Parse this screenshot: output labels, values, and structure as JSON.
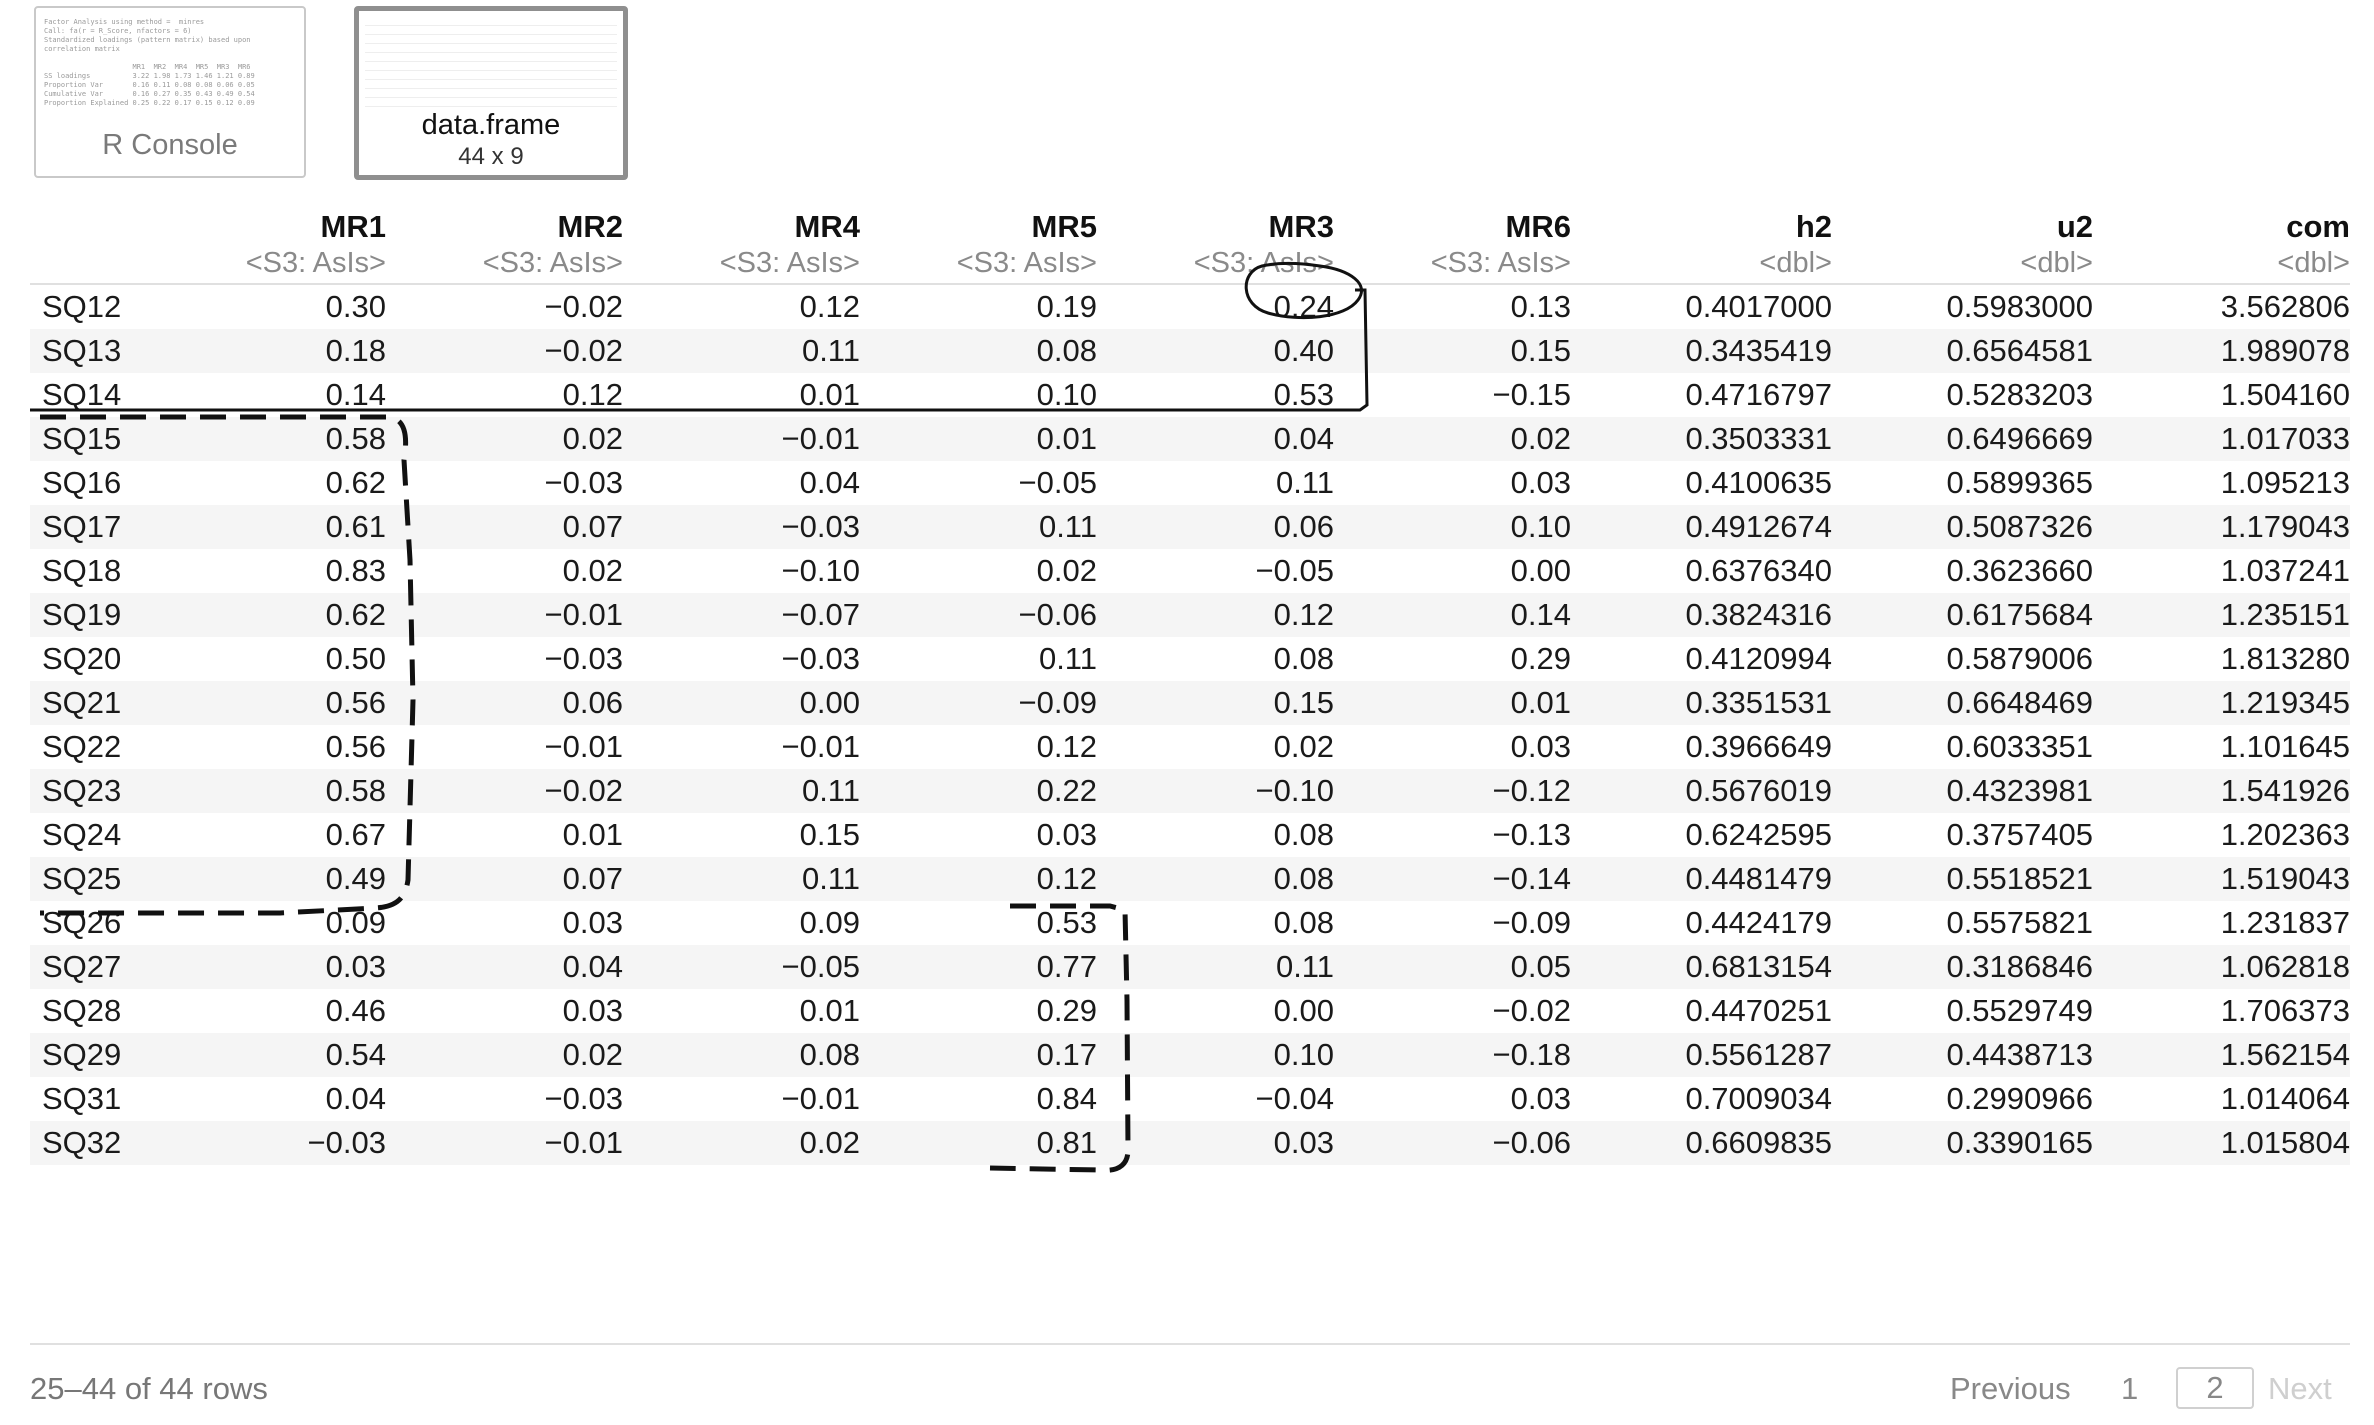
{
  "tabs": [
    {
      "label": "R Console"
    },
    {
      "label": "data.frame",
      "sub": "44 x 9"
    }
  ],
  "columns": [
    {
      "name": "MR1",
      "type": "<S3: AsIs>"
    },
    {
      "name": "MR2",
      "type": "<S3: AsIs>"
    },
    {
      "name": "MR4",
      "type": "<S3: AsIs>"
    },
    {
      "name": "MR5",
      "type": "<S3: AsIs>"
    },
    {
      "name": "MR3",
      "type": "<S3: AsIs>"
    },
    {
      "name": "MR6",
      "type": "<S3: AsIs>"
    },
    {
      "name": "h2",
      "type": "<dbl>"
    },
    {
      "name": "u2",
      "type": "<dbl>"
    },
    {
      "name": "com",
      "type": "<dbl>"
    }
  ],
  "rows": [
    [
      "SQ12",
      "0.30",
      "−0.02",
      "0.12",
      "0.19",
      "0.24",
      "0.13",
      "0.4017000",
      "0.5983000",
      "3.562806"
    ],
    [
      "SQ13",
      "0.18",
      "−0.02",
      "0.11",
      "0.08",
      "0.40",
      "0.15",
      "0.3435419",
      "0.6564581",
      "1.989078"
    ],
    [
      "SQ14",
      "0.14",
      "0.12",
      "0.01",
      "0.10",
      "0.53",
      "−0.15",
      "0.4716797",
      "0.5283203",
      "1.504160"
    ],
    [
      "SQ15",
      "0.58",
      "0.02",
      "−0.01",
      "0.01",
      "0.04",
      "0.02",
      "0.3503331",
      "0.6496669",
      "1.017033"
    ],
    [
      "SQ16",
      "0.62",
      "−0.03",
      "0.04",
      "−0.05",
      "0.11",
      "0.03",
      "0.4100635",
      "0.5899365",
      "1.095213"
    ],
    [
      "SQ17",
      "0.61",
      "0.07",
      "−0.03",
      "0.11",
      "0.06",
      "0.10",
      "0.4912674",
      "0.5087326",
      "1.179043"
    ],
    [
      "SQ18",
      "0.83",
      "0.02",
      "−0.10",
      "0.02",
      "−0.05",
      "0.00",
      "0.6376340",
      "0.3623660",
      "1.037241"
    ],
    [
      "SQ19",
      "0.62",
      "−0.01",
      "−0.07",
      "−0.06",
      "0.12",
      "0.14",
      "0.3824316",
      "0.6175684",
      "1.235151"
    ],
    [
      "SQ20",
      "0.50",
      "−0.03",
      "−0.03",
      "0.11",
      "0.08",
      "0.29",
      "0.4120994",
      "0.5879006",
      "1.813280"
    ],
    [
      "SQ21",
      "0.56",
      "0.06",
      "0.00",
      "−0.09",
      "0.15",
      "0.01",
      "0.3351531",
      "0.6648469",
      "1.219345"
    ],
    [
      "SQ22",
      "0.56",
      "−0.01",
      "−0.01",
      "0.12",
      "0.02",
      "0.03",
      "0.3966649",
      "0.6033351",
      "1.101645"
    ],
    [
      "SQ23",
      "0.58",
      "−0.02",
      "0.11",
      "0.22",
      "−0.10",
      "−0.12",
      "0.5676019",
      "0.4323981",
      "1.541926"
    ],
    [
      "SQ24",
      "0.67",
      "0.01",
      "0.15",
      "0.03",
      "0.08",
      "−0.13",
      "0.6242595",
      "0.3757405",
      "1.202363"
    ],
    [
      "SQ25",
      "0.49",
      "0.07",
      "0.11",
      "0.12",
      "0.08",
      "−0.14",
      "0.4481479",
      "0.5518521",
      "1.519043"
    ],
    [
      "SQ26",
      "0.09",
      "0.03",
      "0.09",
      "0.53",
      "0.08",
      "−0.09",
      "0.4424179",
      "0.5575821",
      "1.231837"
    ],
    [
      "SQ27",
      "0.03",
      "0.04",
      "−0.05",
      "0.77",
      "0.11",
      "0.05",
      "0.6813154",
      "0.3186846",
      "1.062818"
    ],
    [
      "SQ28",
      "0.46",
      "0.03",
      "0.01",
      "0.29",
      "0.00",
      "−0.02",
      "0.4470251",
      "0.5529749",
      "1.706373"
    ],
    [
      "SQ29",
      "0.54",
      "0.02",
      "0.08",
      "0.17",
      "0.10",
      "−0.18",
      "0.5561287",
      "0.4438713",
      "1.562154"
    ],
    [
      "SQ31",
      "0.04",
      "−0.03",
      "−0.01",
      "0.84",
      "−0.04",
      "0.03",
      "0.7009034",
      "0.2990966",
      "1.014064"
    ],
    [
      "SQ32",
      "−0.03",
      "−0.01",
      "0.02",
      "0.81",
      "0.03",
      "−0.06",
      "0.6609835",
      "0.3390165",
      "1.015804"
    ]
  ],
  "footer": {
    "row_info": "25–44 of 44 rows",
    "previous": "Previous",
    "page1": "1",
    "page2": "2",
    "next": "Next"
  }
}
